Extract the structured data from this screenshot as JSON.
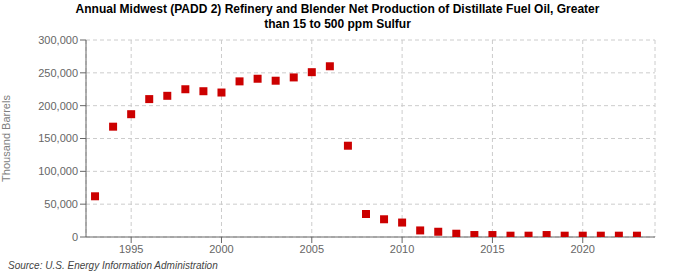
{
  "chart_data": {
    "type": "scatter",
    "title": "Annual Midwest (PADD 2) Refinery and Blender Net Production of Distillate Fuel Oil, Greater\nthan 15 to 500 ppm Sulfur",
    "y_label": "Thousand Barrels",
    "annotations": [
      "Source: U.S. Energy Information Administration"
    ],
    "x": [
      1993,
      1994,
      1995,
      1996,
      1997,
      1998,
      1999,
      2000,
      2001,
      2002,
      2003,
      2004,
      2005,
      2006,
      2007,
      2008,
      2009,
      2010,
      2011,
      2012,
      2013,
      2014,
      2015,
      2016,
      2017,
      2018,
      2019,
      2020,
      2021,
      2022,
      2023
    ],
    "values": [
      62000,
      168000,
      187000,
      210000,
      215000,
      225000,
      222000,
      220000,
      237000,
      241000,
      238000,
      243000,
      251000,
      260000,
      139000,
      35000,
      27000,
      22000,
      10000,
      8000,
      5000,
      3000,
      3000,
      2000,
      2000,
      3000,
      2000,
      2000,
      2000,
      2000,
      2000
    ],
    "color": "#cc0000",
    "marker": "square",
    "xlim": [
      1992.5,
      2024
    ],
    "xticks": [
      1995,
      2000,
      2005,
      2010,
      2015,
      2020
    ],
    "ylim": [
      0,
      300000
    ],
    "yticks": [
      0,
      {
        "value": 50000,
        "label": "50,000"
      },
      {
        "value": 100000,
        "label": "100,000"
      },
      {
        "value": 150000,
        "label": "150,000"
      },
      {
        "value": 200000,
        "label": "200,000"
      },
      {
        "value": 250000,
        "label": "250,000"
      },
      {
        "value": 300000,
        "label": "300,000"
      }
    ],
    "grid": true
  }
}
